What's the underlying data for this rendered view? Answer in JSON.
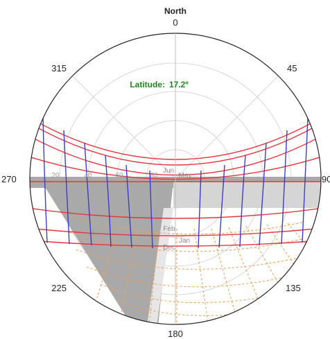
{
  "chart_data": {
    "type": "sun-path-polar",
    "title": "North",
    "latitude_label": "Latitude:",
    "latitude_value": "17.2º",
    "azimuth_ticks": [
      "0",
      "45",
      "90",
      "135",
      "180",
      "225",
      "270",
      "315"
    ],
    "altitude_ticks": [
      "20",
      "40",
      "60",
      "80"
    ],
    "month_labels": [
      "Jun",
      "May",
      "Feb",
      "Jan",
      "Dec"
    ],
    "colors": {
      "date_arcs": "#e8353b",
      "hour_lines": "#3c3cc8",
      "night_dotted": "#f0a050",
      "obstruction": "#a9a9a9",
      "grid": "#cfcfcf",
      "latitude_text": "#1d8a1d"
    }
  }
}
